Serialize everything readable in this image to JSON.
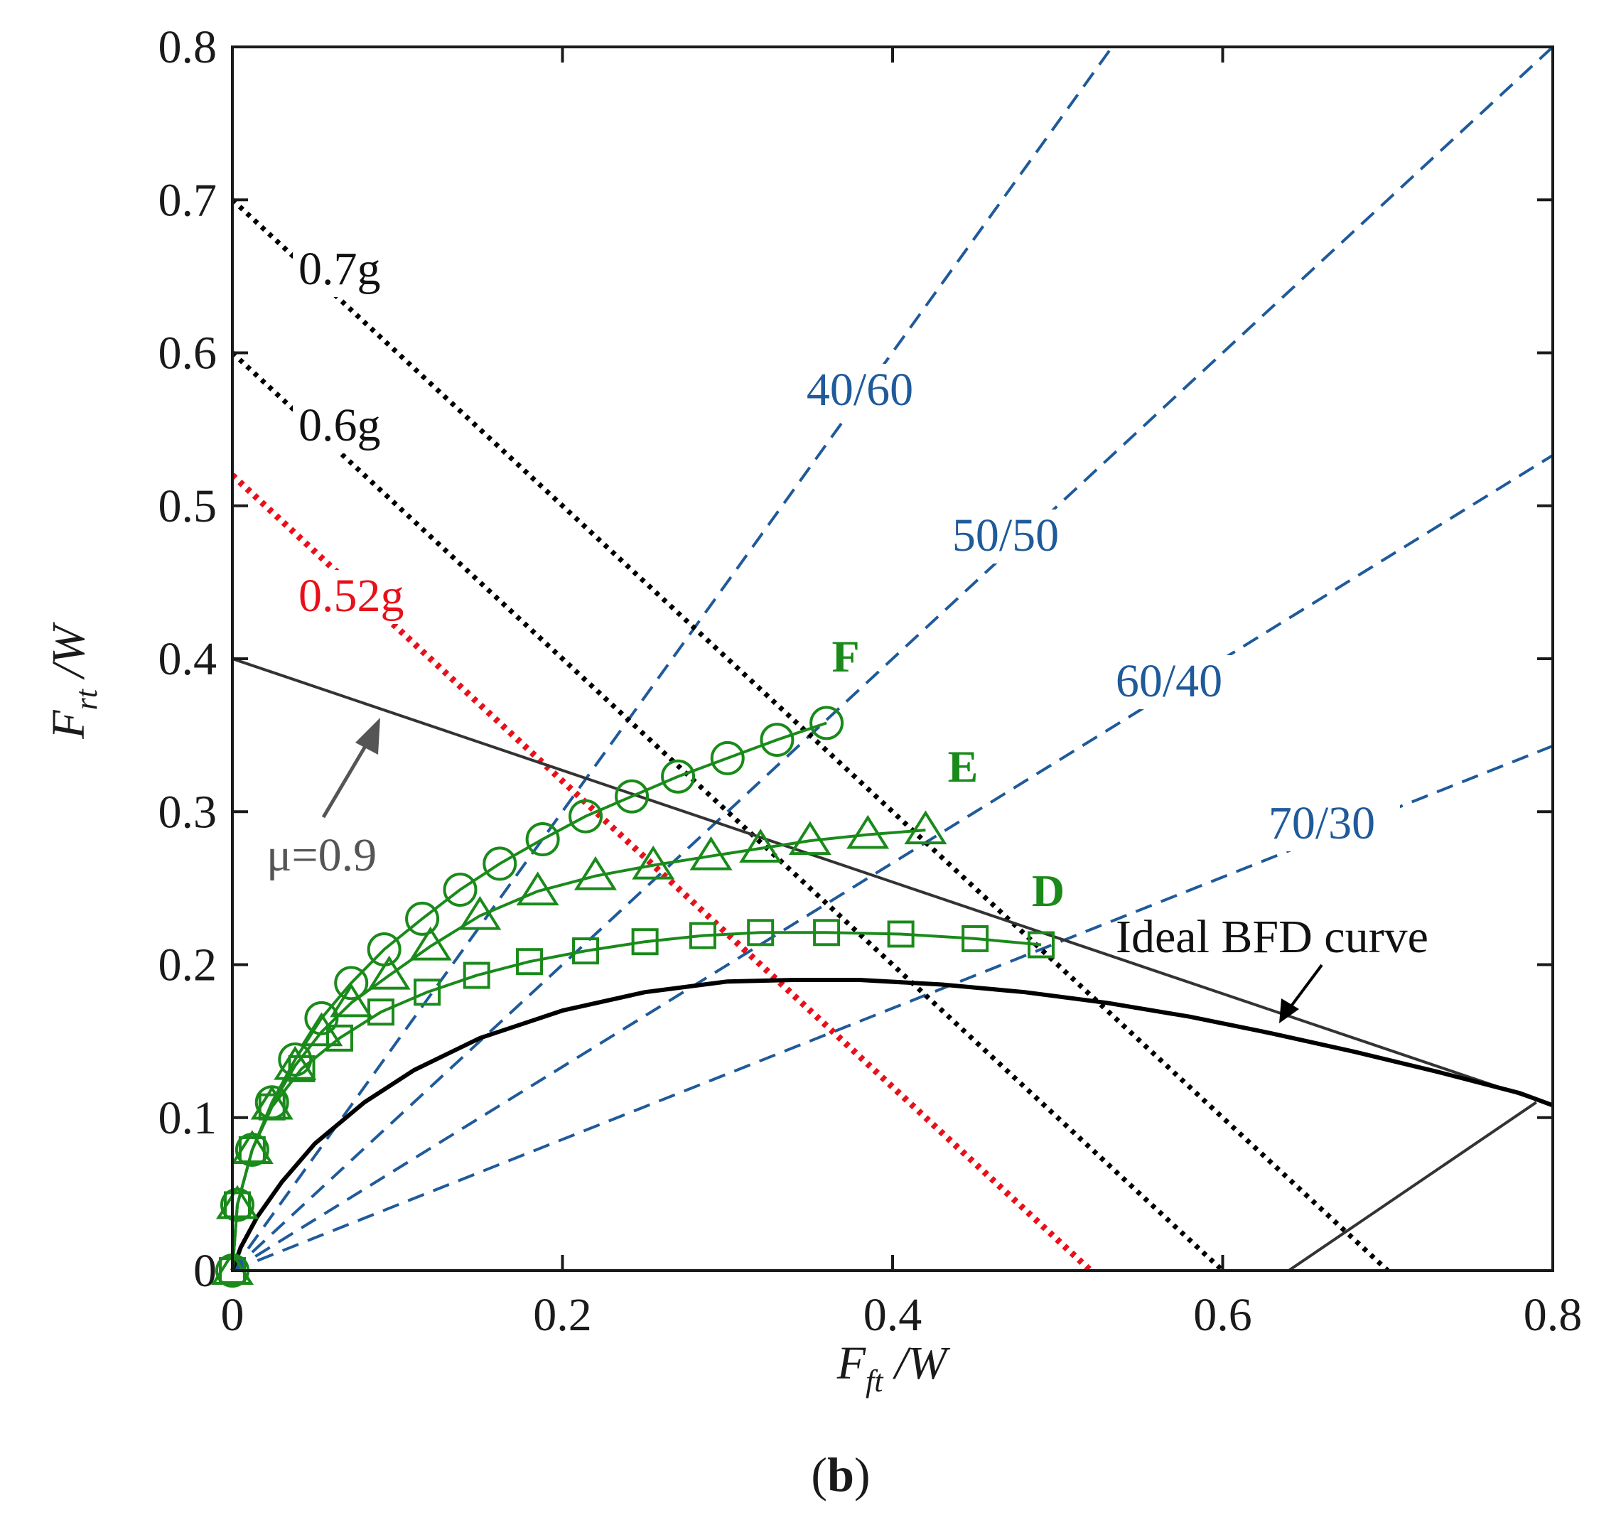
{
  "chart_data": {
    "type": "line",
    "caption": "(b)",
    "xlabel": {
      "main": "F",
      "sub": "ft",
      "rest": " /W"
    },
    "ylabel": {
      "main": "F",
      "sub": "rt",
      "rest": " /W"
    },
    "xlim": [
      0,
      0.8
    ],
    "ylim": [
      0,
      0.8
    ],
    "xticks": [
      0,
      0.2,
      0.4,
      0.6,
      0.8
    ],
    "yticks": [
      0,
      0.1,
      0.2,
      0.3,
      0.4,
      0.5,
      0.6,
      0.7,
      0.8
    ],
    "xtick_labels": [
      "0",
      "0.2",
      "0.4",
      "0.6",
      "0.8"
    ],
    "ytick_labels": [
      "0",
      "0.1",
      "0.2",
      "0.3",
      "0.4",
      "0.5",
      "0.6",
      "0.7",
      "0.8"
    ],
    "grid": false,
    "colors": {
      "series": "#1a8a1a",
      "ratio_lines": "#1f5a9a",
      "decel_lines": "#000000",
      "decel_highlight": "#e8101a",
      "friction_line": "#333333",
      "annotation_gray": "#555555"
    },
    "series": [
      {
        "name": "F",
        "marker": "circle",
        "x": [
          0,
          0.003,
          0.012,
          0.024,
          0.038,
          0.054,
          0.072,
          0.092,
          0.115,
          0.138,
          0.162,
          0.188,
          0.214,
          0.242,
          0.27,
          0.3,
          0.33,
          0.36
        ],
        "y": [
          0,
          0.043,
          0.079,
          0.11,
          0.138,
          0.165,
          0.188,
          0.21,
          0.23,
          0.249,
          0.266,
          0.282,
          0.297,
          0.31,
          0.323,
          0.335,
          0.347,
          0.358
        ]
      },
      {
        "name": "E",
        "marker": "triangle",
        "x": [
          0,
          0.003,
          0.012,
          0.024,
          0.038,
          0.054,
          0.072,
          0.095,
          0.12,
          0.15,
          0.185,
          0.22,
          0.255,
          0.29,
          0.32,
          0.35,
          0.385,
          0.42
        ],
        "y": [
          0,
          0.043,
          0.079,
          0.108,
          0.134,
          0.156,
          0.175,
          0.193,
          0.212,
          0.232,
          0.248,
          0.258,
          0.265,
          0.271,
          0.276,
          0.281,
          0.285,
          0.288
        ]
      },
      {
        "name": "D",
        "marker": "square",
        "x": [
          0,
          0.003,
          0.012,
          0.024,
          0.042,
          0.065,
          0.09,
          0.118,
          0.148,
          0.18,
          0.214,
          0.25,
          0.285,
          0.32,
          0.36,
          0.405,
          0.45,
          0.49
        ],
        "y": [
          0,
          0.043,
          0.079,
          0.107,
          0.132,
          0.152,
          0.169,
          0.182,
          0.193,
          0.202,
          0.209,
          0.215,
          0.219,
          0.221,
          0.221,
          0.22,
          0.217,
          0.213
        ]
      }
    ],
    "ideal_curve": {
      "label": "Ideal BFD curve",
      "x": [
        0,
        0.005,
        0.015,
        0.03,
        0.05,
        0.08,
        0.11,
        0.15,
        0.2,
        0.25,
        0.3,
        0.34,
        0.38,
        0.43,
        0.48,
        0.53,
        0.58,
        0.63,
        0.68,
        0.73,
        0.78,
        0.8
      ],
      "y": [
        0,
        0.015,
        0.035,
        0.058,
        0.083,
        0.11,
        0.131,
        0.152,
        0.17,
        0.182,
        0.189,
        0.19,
        0.19,
        0.187,
        0.182,
        0.175,
        0.166,
        0.155,
        0.143,
        0.13,
        0.116,
        0.108
      ]
    },
    "friction_line": {
      "label": "μ=0.9",
      "upper": {
        "x": [
          0,
          0.8
        ],
        "y": [
          0.4,
          0.108
        ]
      },
      "lower": {
        "x": [
          0.64,
          0.79
        ],
        "y": [
          0,
          0.11
        ]
      }
    },
    "decel_lines": [
      {
        "label": "0.7g",
        "value": 0.7,
        "highlight": false
      },
      {
        "label": "0.6g",
        "value": 0.6,
        "highlight": false
      },
      {
        "label": "0.52g",
        "value": 0.52,
        "highlight": true
      }
    ],
    "ratio_lines": [
      {
        "label": "40/60",
        "end": [
          0.533,
          0.8
        ]
      },
      {
        "label": "50/50",
        "end": [
          0.8,
          0.8
        ]
      },
      {
        "label": "60/40",
        "end": [
          0.8,
          0.533
        ]
      },
      {
        "label": "70/30",
        "end": [
          0.8,
          0.343
        ]
      }
    ]
  }
}
